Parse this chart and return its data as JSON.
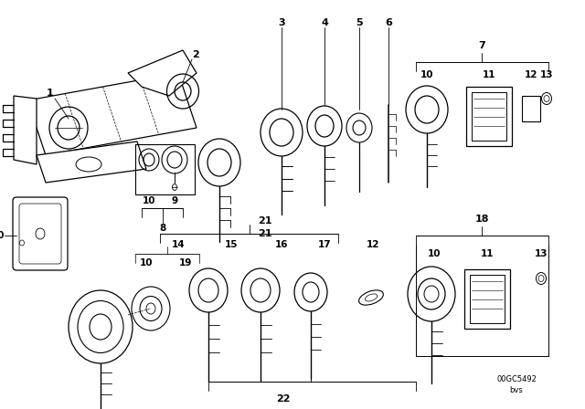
{
  "bg_color": "#ffffff",
  "line_color": "#000000",
  "fig_width": 6.4,
  "fig_height": 4.48,
  "dpi": 100,
  "watermark_code": "00GC5492",
  "watermark_sub": "bvs"
}
